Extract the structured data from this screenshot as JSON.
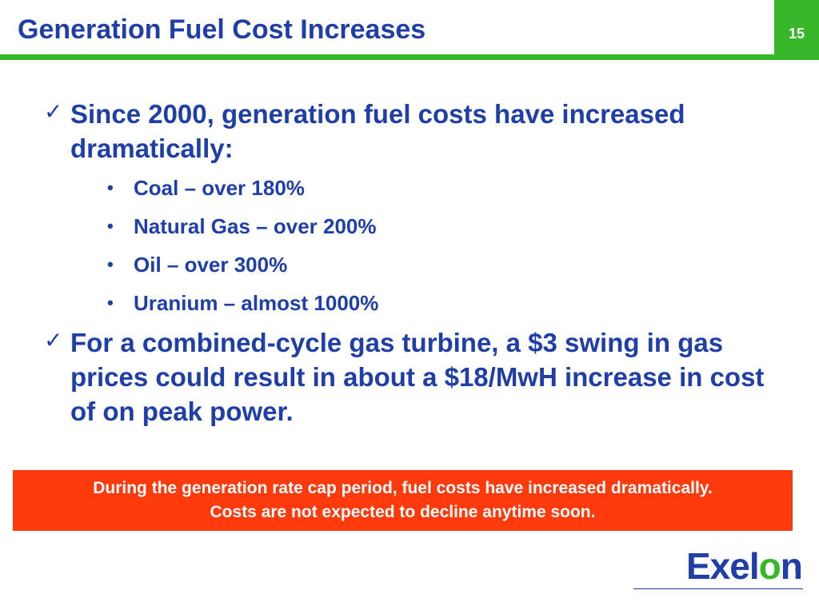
{
  "slide": {
    "title": "Generation Fuel Cost Increases",
    "page_number": "15"
  },
  "bullets": [
    {
      "text": "Since 2000, generation fuel costs have increased dramatically:",
      "sub_items": [
        "Coal – over 180%",
        "Natural Gas – over 200%",
        "Oil – over 300%",
        "Uranium – almost 1000%"
      ]
    },
    {
      "text": "For a combined-cycle gas turbine, a $3 swing in gas prices could result in about a $18/MwH increase in cost of on peak power."
    }
  ],
  "callout": {
    "line1": "During the generation rate cap period, fuel costs have increased dramatically.",
    "line2": "Costs are not expected to decline anytime soon."
  },
  "logo": {
    "text_start": "Exel",
    "text_o": "o",
    "text_end": "n",
    "registered": "®"
  },
  "colors": {
    "title_blue": "#1f3ea8",
    "accent_green": "#39b72b",
    "callout_red": "#ff3a0d"
  }
}
